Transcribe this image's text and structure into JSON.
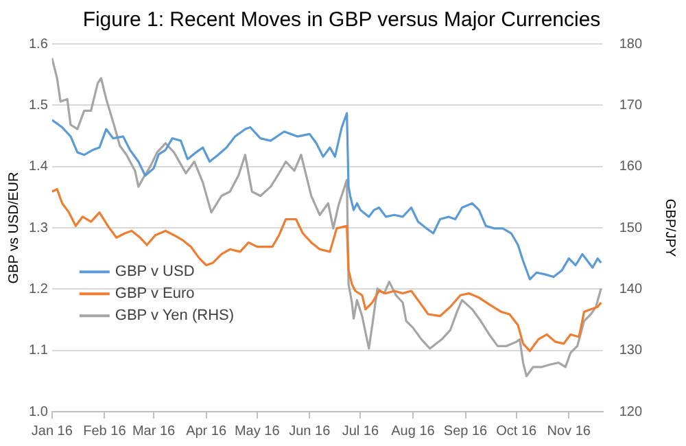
{
  "chart_data": {
    "type": "line",
    "title": "Figure 1: Recent Moves in GBP versus Major Currencies",
    "ylabel": "GBP vs USD/EUR",
    "y2label": "GBP/JPY",
    "xlim": [
      "2016-01-01",
      "2016-11-21"
    ],
    "xticks": [
      {
        "value": "2016-01-01",
        "label": "Jan 16"
      },
      {
        "value": "2016-02-01",
        "label": "Feb 16"
      },
      {
        "value": "2016-03-01",
        "label": "Mar 16"
      },
      {
        "value": "2016-04-01",
        "label": "Apr 16"
      },
      {
        "value": "2016-05-01",
        "label": "May 16"
      },
      {
        "value": "2016-06-01",
        "label": "Jun 16"
      },
      {
        "value": "2016-07-01",
        "label": "Jul 16"
      },
      {
        "value": "2016-08-01",
        "label": "Aug 16"
      },
      {
        "value": "2016-09-01",
        "label": "Sep 16"
      },
      {
        "value": "2016-10-01",
        "label": "Oct 16"
      },
      {
        "value": "2016-11-01",
        "label": "Nov 16"
      }
    ],
    "ylim": [
      1.0,
      1.6
    ],
    "yticks": [
      {
        "value": 1.0,
        "label": "1.0"
      },
      1.1,
      1.2,
      1.3,
      1.4,
      1.5,
      1.6
    ],
    "y2lim": [
      120,
      180
    ],
    "y2ticks": [
      120,
      130,
      140,
      150,
      160,
      170,
      180
    ],
    "grid": "y",
    "legend": "left",
    "marker": "none",
    "line_style": "solid",
    "series": [
      {
        "name": "GBP v USD",
        "color": "#5b9bd5",
        "x": [
          "2016-01-01",
          "2016-01-07",
          "2016-01-12",
          "2016-01-16",
          "2016-01-20",
          "2016-01-25",
          "2016-01-29",
          "2016-02-02",
          "2016-02-06",
          "2016-02-12",
          "2016-02-16",
          "2016-02-21",
          "2016-02-25",
          "2016-03-01",
          "2016-03-04",
          "2016-03-08",
          "2016-03-12",
          "2016-03-17",
          "2016-03-21",
          "2016-03-26",
          "2016-03-30",
          "2016-04-03",
          "2016-04-08",
          "2016-04-13",
          "2016-04-18",
          "2016-04-24",
          "2016-04-27",
          "2016-05-03",
          "2016-05-09",
          "2016-05-17",
          "2016-05-25",
          "2016-06-01",
          "2016-06-05",
          "2016-06-09",
          "2016-06-13",
          "2016-06-16",
          "2016-06-20",
          "2016-06-23",
          "2016-06-24",
          "2016-06-25",
          "2016-06-27",
          "2016-06-29",
          "2016-07-01",
          "2016-07-06",
          "2016-07-09",
          "2016-07-12",
          "2016-07-16",
          "2016-07-21",
          "2016-07-26",
          "2016-07-31",
          "2016-08-04",
          "2016-08-09",
          "2016-08-13",
          "2016-08-17",
          "2016-08-22",
          "2016-08-26",
          "2016-08-30",
          "2016-09-05",
          "2016-09-09",
          "2016-09-13",
          "2016-09-18",
          "2016-09-23",
          "2016-09-28",
          "2016-10-02",
          "2016-10-05",
          "2016-10-09",
          "2016-10-13",
          "2016-10-18",
          "2016-10-23",
          "2016-10-28",
          "2016-11-01",
          "2016-11-05",
          "2016-11-09",
          "2016-11-12",
          "2016-11-15",
          "2016-11-18",
          "2016-11-20"
        ],
        "values": [
          1.476,
          1.464,
          1.449,
          1.423,
          1.419,
          1.427,
          1.431,
          1.461,
          1.446,
          1.449,
          1.427,
          1.408,
          1.385,
          1.397,
          1.42,
          1.427,
          1.446,
          1.442,
          1.412,
          1.423,
          1.431,
          1.408,
          1.419,
          1.431,
          1.449,
          1.461,
          1.464,
          1.446,
          1.442,
          1.457,
          1.449,
          1.453,
          1.438,
          1.416,
          1.431,
          1.416,
          1.464,
          1.487,
          1.367,
          1.352,
          1.329,
          1.34,
          1.329,
          1.318,
          1.329,
          1.333,
          1.318,
          1.321,
          1.318,
          1.333,
          1.31,
          1.299,
          1.291,
          1.314,
          1.318,
          1.314,
          1.333,
          1.34,
          1.329,
          1.303,
          1.299,
          1.299,
          1.291,
          1.272,
          1.246,
          1.216,
          1.227,
          1.224,
          1.22,
          1.231,
          1.25,
          1.239,
          1.257,
          1.246,
          1.235,
          1.25,
          1.243
        ]
      },
      {
        "name": "GBP v Euro",
        "color": "#ed7d31",
        "x": [
          "2016-01-01",
          "2016-01-04",
          "2016-01-07",
          "2016-01-11",
          "2016-01-15",
          "2016-01-19",
          "2016-01-24",
          "2016-01-29",
          "2016-02-03",
          "2016-02-08",
          "2016-02-13",
          "2016-02-17",
          "2016-02-22",
          "2016-02-26",
          "2016-03-02",
          "2016-03-08",
          "2016-03-13",
          "2016-03-18",
          "2016-03-23",
          "2016-03-28",
          "2016-04-01",
          "2016-04-05",
          "2016-04-10",
          "2016-04-15",
          "2016-04-21",
          "2016-04-26",
          "2016-05-01",
          "2016-05-06",
          "2016-05-10",
          "2016-05-14",
          "2016-05-18",
          "2016-05-24",
          "2016-05-28",
          "2016-06-02",
          "2016-06-07",
          "2016-06-13",
          "2016-06-17",
          "2016-06-23",
          "2016-06-24",
          "2016-06-26",
          "2016-06-28",
          "2016-07-02",
          "2016-07-04",
          "2016-07-08",
          "2016-07-12",
          "2016-07-16",
          "2016-07-21",
          "2016-07-26",
          "2016-07-31",
          "2016-08-04",
          "2016-08-10",
          "2016-08-17",
          "2016-08-23",
          "2016-08-29",
          "2016-09-03",
          "2016-09-09",
          "2016-09-15",
          "2016-09-22",
          "2016-09-27",
          "2016-10-02",
          "2016-10-05",
          "2016-10-09",
          "2016-10-14",
          "2016-10-19",
          "2016-10-24",
          "2016-10-29",
          "2016-11-02",
          "2016-11-07",
          "2016-11-10",
          "2016-11-14",
          "2016-11-18",
          "2016-11-20"
        ],
        "values": [
          1.359,
          1.363,
          1.34,
          1.325,
          1.303,
          1.318,
          1.31,
          1.325,
          1.303,
          1.284,
          1.291,
          1.295,
          1.284,
          1.272,
          1.288,
          1.295,
          1.288,
          1.28,
          1.269,
          1.25,
          1.239,
          1.243,
          1.257,
          1.265,
          1.261,
          1.276,
          1.269,
          1.269,
          1.269,
          1.288,
          1.314,
          1.314,
          1.291,
          1.276,
          1.265,
          1.261,
          1.299,
          1.303,
          1.231,
          1.208,
          1.197,
          1.19,
          1.167,
          1.178,
          1.197,
          1.193,
          1.197,
          1.193,
          1.197,
          1.182,
          1.159,
          1.156,
          1.171,
          1.19,
          1.193,
          1.186,
          1.175,
          1.163,
          1.159,
          1.141,
          1.111,
          1.099,
          1.118,
          1.126,
          1.114,
          1.111,
          1.126,
          1.122,
          1.163,
          1.167,
          1.171,
          1.178
        ]
      },
      {
        "name": "GBP v Yen (RHS)",
        "color": "#a5a5a5",
        "axis": "y2",
        "x": [
          "2016-01-01",
          "2016-01-04",
          "2016-01-06",
          "2016-01-10",
          "2016-01-12",
          "2016-01-16",
          "2016-01-20",
          "2016-01-24",
          "2016-01-28",
          "2016-01-30",
          "2016-02-02",
          "2016-02-07",
          "2016-02-10",
          "2016-02-14",
          "2016-02-19",
          "2016-02-21",
          "2016-02-24",
          "2016-02-28",
          "2016-03-03",
          "2016-03-08",
          "2016-03-13",
          "2016-03-20",
          "2016-03-25",
          "2016-03-30",
          "2016-04-04",
          "2016-04-10",
          "2016-04-15",
          "2016-04-20",
          "2016-04-24",
          "2016-04-28",
          "2016-05-03",
          "2016-05-09",
          "2016-05-14",
          "2016-05-18",
          "2016-05-23",
          "2016-05-27",
          "2016-06-02",
          "2016-06-07",
          "2016-06-12",
          "2016-06-15",
          "2016-06-18",
          "2016-06-23",
          "2016-06-24",
          "2016-06-26",
          "2016-06-27",
          "2016-06-29",
          "2016-07-02",
          "2016-07-06",
          "2016-07-08",
          "2016-07-11",
          "2016-07-15",
          "2016-07-18",
          "2016-07-22",
          "2016-07-26",
          "2016-07-28",
          "2016-08-01",
          "2016-08-06",
          "2016-08-11",
          "2016-08-18",
          "2016-08-23",
          "2016-08-27",
          "2016-08-30",
          "2016-09-05",
          "2016-09-10",
          "2016-09-15",
          "2016-09-20",
          "2016-09-25",
          "2016-10-01",
          "2016-10-03",
          "2016-10-05",
          "2016-10-07",
          "2016-10-11",
          "2016-10-16",
          "2016-10-21",
          "2016-10-26",
          "2016-10-30",
          "2016-11-02",
          "2016-11-06",
          "2016-11-10",
          "2016-11-14",
          "2016-11-17",
          "2016-11-20"
        ],
        "values": [
          177.7,
          174.4,
          170.6,
          171,
          166.8,
          166.1,
          169.1,
          169.1,
          173.6,
          174.4,
          171,
          166.4,
          163.4,
          161.9,
          159.3,
          156.7,
          158.2,
          160,
          162.3,
          163.8,
          162.3,
          158.9,
          160.8,
          157.4,
          152.5,
          155.2,
          155.9,
          158.5,
          161.9,
          155.9,
          155.2,
          156.7,
          158.9,
          160.8,
          159.3,
          161.9,
          155.2,
          152.1,
          154,
          149.9,
          153.6,
          157.8,
          140.8,
          137.8,
          135.2,
          138.2,
          135.6,
          130.3,
          134.1,
          140.1,
          139.3,
          141.2,
          139,
          137.8,
          134.8,
          133.7,
          131.8,
          130.3,
          131.8,
          133.3,
          136.3,
          138.2,
          136.7,
          134.8,
          132.6,
          130.7,
          130.7,
          131.4,
          131.8,
          128,
          125.8,
          127.3,
          127.3,
          127.7,
          128,
          127.3,
          129.6,
          130.7,
          134.8,
          135.9,
          137.1,
          140.1
        ]
      }
    ]
  }
}
